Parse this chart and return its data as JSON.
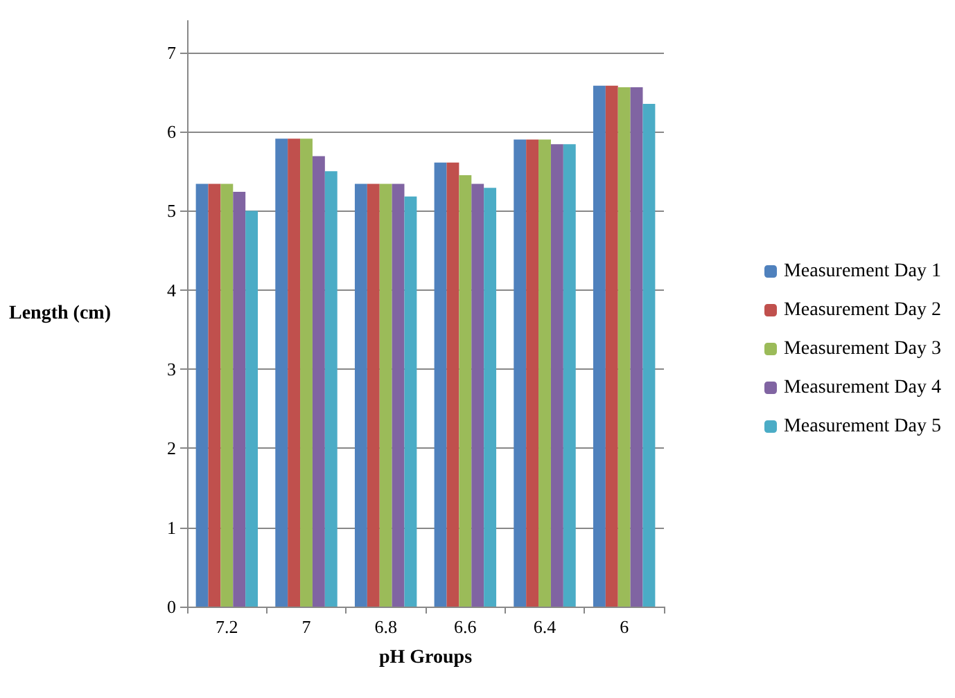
{
  "chart_data": {
    "type": "bar",
    "xlabel": "pH Groups",
    "ylabel": "Length (cm)",
    "categories": [
      "7.2",
      "7",
      "6.8",
      "6.6",
      "6.4",
      "6"
    ],
    "series": [
      {
        "name": "Measurement Day 1",
        "color": "#4f81bd",
        "values": [
          5.34,
          5.91,
          5.34,
          5.61,
          5.9,
          6.58
        ]
      },
      {
        "name": "Measurement Day 2",
        "color": "#c0504d",
        "values": [
          5.34,
          5.91,
          5.34,
          5.61,
          5.9,
          6.58
        ]
      },
      {
        "name": "Measurement Day 3",
        "color": "#9bbb59",
        "values": [
          5.34,
          5.91,
          5.34,
          5.45,
          5.9,
          6.56
        ]
      },
      {
        "name": "Measurement Day 4",
        "color": "#8064a2",
        "values": [
          5.24,
          5.69,
          5.34,
          5.34,
          5.84,
          6.56
        ]
      },
      {
        "name": "Measurement Day 5",
        "color": "#4bacc6",
        "values": [
          5.0,
          5.5,
          5.18,
          5.29,
          5.84,
          6.35
        ]
      }
    ],
    "ylim": [
      0,
      7.4
    ],
    "yticks": [
      0,
      1,
      2,
      3,
      4,
      5,
      6,
      7
    ],
    "grid": "y",
    "legend": "right"
  }
}
